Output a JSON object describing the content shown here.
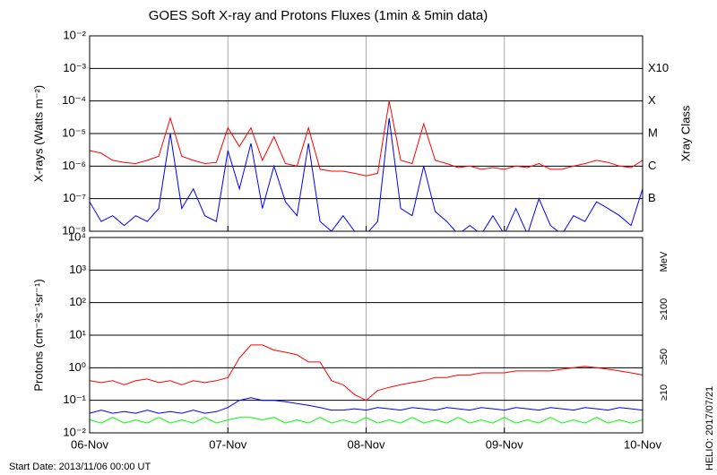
{
  "chart_data": [
    {
      "type": "line",
      "title": "GOES Soft X-ray and Protons Fluxes   (1min & 5min data)",
      "ylabel": "X-rays (Watts m⁻²)",
      "y2label": "Xray Class",
      "log": true,
      "grid": true,
      "x": [
        0,
        2,
        4,
        6,
        8,
        10,
        12,
        14,
        16,
        18,
        20,
        22,
        24,
        26,
        28,
        30,
        32,
        34,
        36,
        38,
        40,
        42,
        44,
        46,
        48,
        50,
        52,
        54,
        56,
        58,
        60,
        62,
        64,
        66,
        68,
        70,
        72,
        74,
        76,
        78,
        80,
        82,
        84,
        86,
        88,
        90,
        92,
        94,
        96
      ],
      "xlim": [
        0,
        96
      ],
      "xticks": [
        0,
        24,
        48,
        72,
        96
      ],
      "ylim": [
        1e-08,
        0.01
      ],
      "yticks": [
        {
          "value": 1e-08,
          "label": "10⁻⁸"
        },
        {
          "value": 1e-07,
          "label": "10⁻⁷"
        },
        {
          "value": 1e-06,
          "label": "10⁻⁶"
        },
        {
          "value": 1e-05,
          "label": "10⁻⁵"
        },
        {
          "value": 0.0001,
          "label": "10⁻⁴"
        },
        {
          "value": 0.001,
          "label": "10⁻³"
        },
        {
          "value": 0.01,
          "label": "10⁻²"
        }
      ],
      "class_labels": [
        {
          "value": 1e-07,
          "label": "B"
        },
        {
          "value": 1e-06,
          "label": "C"
        },
        {
          "value": 1e-05,
          "label": "M"
        },
        {
          "value": 0.0001,
          "label": "X"
        },
        {
          "value": 0.001,
          "label": "X10"
        }
      ],
      "series": [
        {
          "color": "#ff0000",
          "values": [
            3e-06,
            2.5e-06,
            1.5e-06,
            1.3e-06,
            1.2e-06,
            1.5e-06,
            2e-06,
            3e-05,
            2e-06,
            1.5e-06,
            1.2e-06,
            1.3e-06,
            1.5e-05,
            4e-06,
            1.5e-05,
            1.5e-06,
            8e-06,
            1.2e-06,
            1e-06,
            1.5e-05,
            8e-07,
            7e-07,
            7e-07,
            6e-07,
            5e-07,
            6e-07,
            0.0001,
            1.5e-06,
            1.2e-06,
            2e-05,
            1.5e-06,
            1.2e-06,
            9e-07,
            1e-06,
            8e-07,
            9e-07,
            8e-07,
            1e-06,
            9e-07,
            1.2e-06,
            8e-07,
            8e-07,
            1e-06,
            1.2e-06,
            1.5e-06,
            1.3e-06,
            1e-06,
            9e-07,
            1.5e-06
          ]
        },
        {
          "color": "#0000ff",
          "values": [
            8e-08,
            2e-08,
            3e-08,
            1.5e-08,
            3e-08,
            2e-08,
            5e-08,
            1e-05,
            5e-08,
            2e-07,
            3e-08,
            2e-08,
            3e-06,
            2e-07,
            5e-06,
            5e-08,
            1e-06,
            8e-08,
            3e-08,
            5e-06,
            2e-08,
            1e-08,
            3e-08,
            1e-08,
            8e-09,
            2e-08,
            3e-05,
            5e-08,
            3e-08,
            1e-06,
            4e-08,
            2e-08,
            8e-09,
            1.5e-08,
            8e-09,
            3e-08,
            8e-09,
            5e-08,
            8e-09,
            1e-07,
            1.5e-08,
            8e-09,
            3e-08,
            2e-08,
            8e-08,
            5e-08,
            3e-08,
            1.5e-08,
            2e-07
          ]
        }
      ]
    },
    {
      "type": "line",
      "ylabel": "Protons (cm⁻²s⁻¹sr⁻¹)",
      "legend_title": "MeV",
      "log": true,
      "grid": true,
      "threshold": 10,
      "x": [
        0,
        2,
        4,
        6,
        8,
        10,
        12,
        14,
        16,
        18,
        20,
        22,
        24,
        26,
        28,
        30,
        32,
        34,
        36,
        38,
        40,
        42,
        44,
        46,
        48,
        50,
        52,
        54,
        56,
        58,
        60,
        62,
        64,
        66,
        68,
        70,
        72,
        74,
        76,
        78,
        80,
        82,
        84,
        86,
        88,
        90,
        92,
        94,
        96
      ],
      "xlim": [
        0,
        96
      ],
      "xticks": [
        {
          "value": 0,
          "label": "06-Nov"
        },
        {
          "value": 24,
          "label": "07-Nov"
        },
        {
          "value": 48,
          "label": "08-Nov"
        },
        {
          "value": 72,
          "label": "09-Nov"
        },
        {
          "value": 96,
          "label": "10-Nov"
        }
      ],
      "ylim": [
        0.01,
        10000
      ],
      "yticks": [
        {
          "value": 0.01,
          "label": "10⁻²"
        },
        {
          "value": 0.1,
          "label": "10⁻¹"
        },
        {
          "value": 1,
          "label": "10⁰"
        },
        {
          "value": 10,
          "label": "10¹"
        },
        {
          "value": 100,
          "label": "10²"
        },
        {
          "value": 1000,
          "label": "10³"
        },
        {
          "value": 10000,
          "label": "10⁴"
        }
      ],
      "series": [
        {
          "name": "≥10",
          "color": "#ff0000",
          "values": [
            0.4,
            0.35,
            0.4,
            0.3,
            0.4,
            0.45,
            0.35,
            0.4,
            0.3,
            0.4,
            0.35,
            0.4,
            0.5,
            2,
            5,
            5,
            3.5,
            3,
            2.5,
            1.5,
            1.5,
            0.4,
            0.3,
            0.15,
            0.1,
            0.2,
            0.25,
            0.3,
            0.35,
            0.4,
            0.5,
            0.5,
            0.6,
            0.6,
            0.7,
            0.7,
            0.7,
            0.8,
            0.8,
            0.8,
            0.8,
            0.9,
            1,
            1.1,
            1,
            0.9,
            0.8,
            0.7,
            0.6
          ]
        },
        {
          "name": "≥50",
          "color": "#0000ff",
          "values": [
            0.04,
            0.05,
            0.04,
            0.045,
            0.04,
            0.05,
            0.04,
            0.045,
            0.04,
            0.05,
            0.04,
            0.045,
            0.06,
            0.1,
            0.12,
            0.1,
            0.1,
            0.09,
            0.08,
            0.07,
            0.06,
            0.05,
            0.05,
            0.055,
            0.05,
            0.06,
            0.055,
            0.05,
            0.06,
            0.055,
            0.05,
            0.06,
            0.055,
            0.05,
            0.06,
            0.055,
            0.05,
            0.06,
            0.055,
            0.05,
            0.06,
            0.055,
            0.05,
            0.06,
            0.055,
            0.05,
            0.06,
            0.055,
            0.05
          ]
        },
        {
          "name": "≥100",
          "color": "#00ff00",
          "values": [
            0.025,
            0.02,
            0.03,
            0.02,
            0.025,
            0.02,
            0.03,
            0.02,
            0.025,
            0.02,
            0.03,
            0.02,
            0.025,
            0.03,
            0.03,
            0.025,
            0.03,
            0.02,
            0.025,
            0.02,
            0.03,
            0.02,
            0.025,
            0.02,
            0.03,
            0.02,
            0.025,
            0.02,
            0.03,
            0.02,
            0.025,
            0.02,
            0.03,
            0.02,
            0.025,
            0.02,
            0.03,
            0.02,
            0.025,
            0.02,
            0.03,
            0.02,
            0.025,
            0.02,
            0.03,
            0.02,
            0.025,
            0.02,
            0.025
          ]
        }
      ]
    }
  ],
  "footer": {
    "start_date": "Start Date: 2013/11/06 00:00 UT",
    "credit": "HELIO: 2017/07/21"
  }
}
